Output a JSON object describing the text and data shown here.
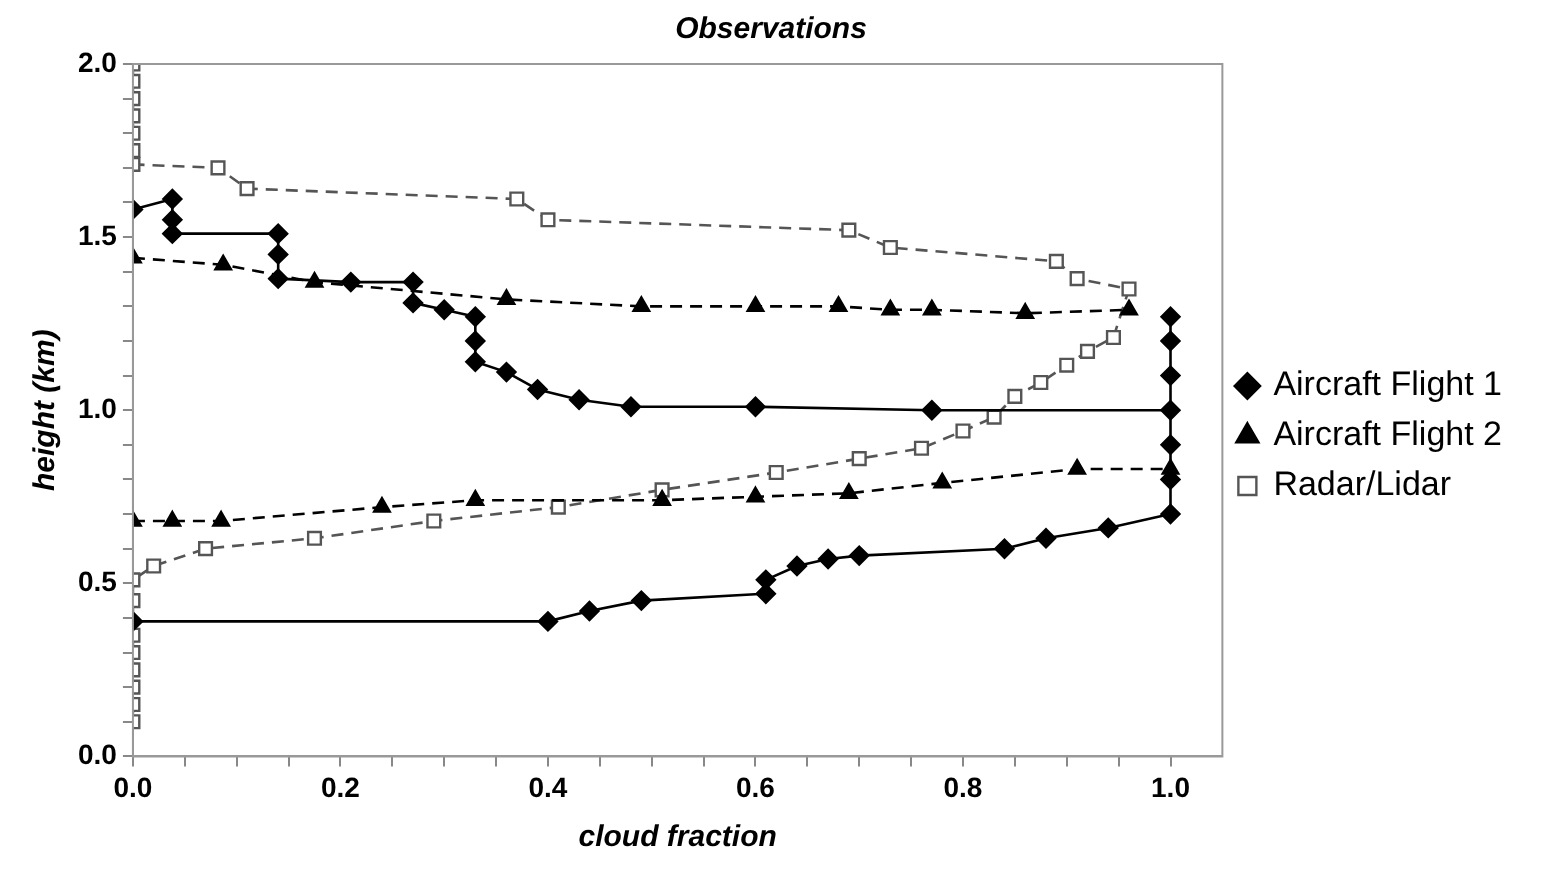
{
  "chart_data": {
    "type": "scatter",
    "title": "Observations",
    "xlabel": "cloud fraction",
    "ylabel": "height (km)",
    "xlim": [
      0,
      1.05
    ],
    "ylim": [
      0,
      2
    ],
    "xticks": [
      {
        "value": 0,
        "label": "0.0"
      },
      {
        "value": 0.05,
        "label": null
      },
      {
        "value": 0.1,
        "label": null
      },
      {
        "value": 0.15,
        "label": null
      },
      {
        "value": 0.2,
        "label": "0.2"
      },
      {
        "value": 0.25,
        "label": null
      },
      {
        "value": 0.3,
        "label": null
      },
      {
        "value": 0.35,
        "label": null
      },
      {
        "value": 0.4,
        "label": "0.4"
      },
      {
        "value": 0.45,
        "label": null
      },
      {
        "value": 0.5,
        "label": null
      },
      {
        "value": 0.55,
        "label": null
      },
      {
        "value": 0.6,
        "label": "0.6"
      },
      {
        "value": 0.65,
        "label": null
      },
      {
        "value": 0.7,
        "label": null
      },
      {
        "value": 0.75,
        "label": null
      },
      {
        "value": 0.8,
        "label": "0.8"
      },
      {
        "value": 0.85,
        "label": null
      },
      {
        "value": 0.9,
        "label": null
      },
      {
        "value": 0.95,
        "label": null
      },
      {
        "value": 1.0,
        "label": "1.0"
      }
    ],
    "yticks": [
      {
        "value": 0,
        "label": "0.0"
      },
      {
        "value": 0.1,
        "label": null
      },
      {
        "value": 0.2,
        "label": null
      },
      {
        "value": 0.3,
        "label": null
      },
      {
        "value": 0.4,
        "label": null
      },
      {
        "value": 0.5,
        "label": "0.5"
      },
      {
        "value": 0.6,
        "label": null
      },
      {
        "value": 0.7,
        "label": null
      },
      {
        "value": 0.8,
        "label": null
      },
      {
        "value": 0.9,
        "label": null
      },
      {
        "value": 1.0,
        "label": "1.0"
      },
      {
        "value": 1.1,
        "label": null
      },
      {
        "value": 1.2,
        "label": null
      },
      {
        "value": 1.3,
        "label": null
      },
      {
        "value": 1.4,
        "label": null
      },
      {
        "value": 1.5,
        "label": "1.5"
      },
      {
        "value": 1.6,
        "label": null
      },
      {
        "value": 1.7,
        "label": null
      },
      {
        "value": 1.8,
        "label": null
      },
      {
        "value": 1.9,
        "label": null
      },
      {
        "value": 2.0,
        "label": "2.0"
      }
    ],
    "grid": false,
    "legend": "right",
    "series": [
      {
        "name": "Aircraft Flight 1",
        "color": "#000000",
        "type": "line",
        "marker": "diamond",
        "line_style": "solid",
        "x": [
          0,
          0.038,
          0.038,
          0.038,
          0.14,
          0.14,
          0.14,
          0.21,
          0.27,
          0.27,
          0.3,
          0.33,
          0.33,
          0.33,
          0.36,
          0.39,
          0.43,
          0.48,
          0.6,
          0.77,
          1.0,
          1.0,
          1.0,
          1.0,
          1.0,
          1.0,
          1.0,
          0.94,
          0.88,
          0.84,
          0.7,
          0.67,
          0.64,
          0.61,
          0.61,
          0.49,
          0.44,
          0.4,
          0
        ],
        "values": [
          1.58,
          1.61,
          1.55,
          1.51,
          1.51,
          1.45,
          1.38,
          1.37,
          1.37,
          1.31,
          1.29,
          1.27,
          1.2,
          1.14,
          1.11,
          1.06,
          1.03,
          1.01,
          1.01,
          1.0,
          1.0,
          1.1,
          1.2,
          1.27,
          0.9,
          0.8,
          0.7,
          0.66,
          0.63,
          0.6,
          0.58,
          0.57,
          0.55,
          0.51,
          0.47,
          0.45,
          0.42,
          0.39,
          0.39
        ]
      },
      {
        "name": "Aircraft Flight 2",
        "color": "#000000",
        "type": "line",
        "marker": "triangle",
        "line_style": "dashed",
        "x": [
          0,
          0.087,
          0.175,
          0.36,
          0.49,
          0.6,
          0.68,
          0.73,
          0.77,
          0.86,
          0.96,
          null,
          0,
          0.038,
          0.085,
          0.24,
          0.33,
          0.51,
          0.6,
          0.69,
          0.78,
          0.91,
          1.0
        ],
        "values": [
          1.44,
          1.42,
          1.37,
          1.32,
          1.3,
          1.3,
          1.3,
          1.29,
          1.29,
          1.28,
          1.29,
          null,
          0.68,
          0.68,
          0.68,
          0.72,
          0.74,
          0.74,
          0.75,
          0.76,
          0.79,
          0.83,
          0.83
        ]
      },
      {
        "name": "Radar/Lidar",
        "color": "#555555",
        "type": "line",
        "marker": "square",
        "line_style": "dashed",
        "x": [
          0,
          0,
          0,
          0,
          0,
          0,
          0,
          0.082,
          0.11,
          0.37,
          0.4,
          0.69,
          0.73,
          0.89,
          0.91,
          0.96,
          0.945,
          0.92,
          0.9,
          0.875,
          0.85,
          0.83,
          0.8,
          0.76,
          0.7,
          0.62,
          0.51,
          0.41,
          0.29,
          0.175,
          0.07,
          0.02,
          0,
          0,
          0,
          0,
          0,
          0,
          0,
          0
        ],
        "values": [
          2.0,
          1.95,
          1.9,
          1.85,
          1.8,
          1.75,
          1.71,
          1.7,
          1.64,
          1.61,
          1.55,
          1.52,
          1.47,
          1.43,
          1.38,
          1.35,
          1.21,
          1.17,
          1.13,
          1.08,
          1.04,
          0.98,
          0.94,
          0.89,
          0.86,
          0.82,
          0.77,
          0.72,
          0.68,
          0.63,
          0.6,
          0.55,
          0.51,
          0.45,
          0.35,
          0.3,
          0.25,
          0.2,
          0.15,
          0.1
        ]
      }
    ]
  }
}
